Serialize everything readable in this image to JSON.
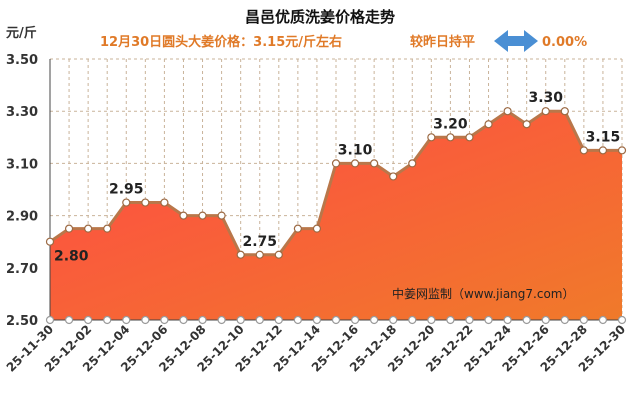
{
  "chart_data": {
    "type": "area",
    "title": "昌邑优质洗姜价格走势",
    "subtitle_left": "12月30日圆头大姜价格：3.15元/斤左右",
    "subtitle_right": "较昨日持平",
    "change_pct": "0.00%",
    "ylabel": "元/斤",
    "source_note": "中姜网监制（www.jiang7.com）",
    "ylim": [
      2.5,
      3.5
    ],
    "yticks": [
      "2.50",
      "2.70",
      "2.90",
      "3.10",
      "3.30",
      "3.50"
    ],
    "xtick_labels": [
      "25-11-30",
      "25-12-02",
      "25-12-04",
      "25-12-06",
      "25-12-08",
      "25-12-10",
      "25-12-12",
      "25-12-14",
      "25-12-16",
      "25-12-18",
      "25-12-20",
      "25-12-22",
      "25-12-24",
      "25-12-26",
      "25-12-28",
      "25-12-30"
    ],
    "values": [
      2.8,
      2.85,
      2.85,
      2.85,
      2.95,
      2.95,
      2.95,
      2.9,
      2.9,
      2.9,
      2.75,
      2.75,
      2.75,
      2.85,
      2.85,
      3.1,
      3.1,
      3.1,
      3.05,
      3.1,
      3.2,
      3.2,
      3.2,
      3.25,
      3.3,
      3.25,
      3.3,
      3.3,
      3.15,
      3.15,
      3.15
    ],
    "annotations": [
      {
        "index": 0,
        "label": "2.80"
      },
      {
        "index": 4,
        "label": "2.95"
      },
      {
        "index": 11,
        "label": "2.75"
      },
      {
        "index": 16,
        "label": "3.10"
      },
      {
        "index": 21,
        "label": "3.20"
      },
      {
        "index": 26,
        "label": "3.30"
      },
      {
        "index": 29,
        "label": "3.15"
      }
    ],
    "grid": true,
    "colors": {
      "fill_top": "#ff3b4a",
      "fill_bottom": "#f07a2a",
      "line": "#b9774a",
      "marker": "#ffffff",
      "grid": "#c9b39a",
      "arrow": "#4a8fd4"
    }
  }
}
